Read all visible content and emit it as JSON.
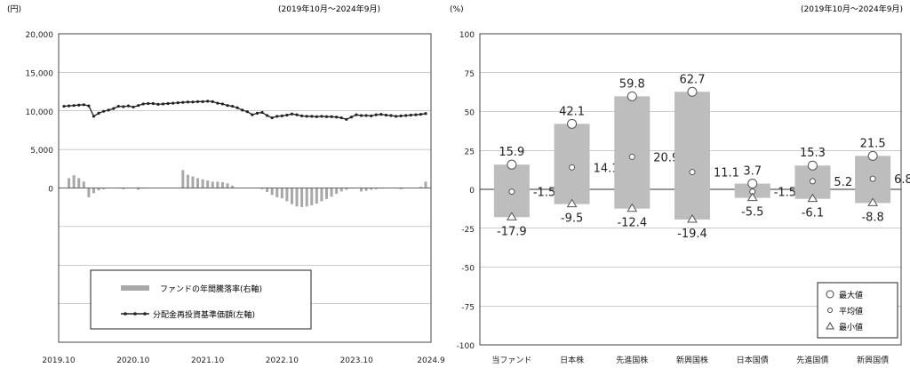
{
  "left_chart": {
    "unit_label": "(円)",
    "period": "(2019年10月～2024年9月)",
    "legend": {
      "bar_label": "ファンドの年間騰落率(右軸)",
      "line_label": "分配金再投資基準価額(左軸)"
    },
    "colors": {
      "bar": "#a8a8a8",
      "line": "#222222",
      "axis": "#444444",
      "grid": "#9a9a9a"
    }
  },
  "right_chart": {
    "unit_label": "(%)",
    "period": "(2019年10月～2024年9月)",
    "legend": {
      "max_label": "最大値",
      "avg_label": "平均値",
      "min_label": "最小値"
    },
    "colors": {
      "bar": "#bdbdbd",
      "marker": "#ffffff",
      "axis": "#444444",
      "grid": "#9a9a9a"
    }
  },
  "chart_data": [
    {
      "type": "line",
      "title": "",
      "xlabel": "",
      "ylabel": "(円)",
      "ylim": [
        0,
        20000
      ],
      "yticks": [
        "20,000",
        "15,000",
        "10,000",
        "5,000",
        "0"
      ],
      "xticks": [
        "2019.10",
        "2020.10",
        "2021.10",
        "2022.10",
        "2023.10",
        "2024.9"
      ],
      "grid": true,
      "legend_position": "bottom-center",
      "series": [
        {
          "name": "分配金再投資基準価額(左軸)",
          "axis": "left",
          "kind": "line",
          "values": [
            10600,
            10650,
            10700,
            10750,
            10800,
            10650,
            9300,
            9700,
            9950,
            10100,
            10300,
            10600,
            10550,
            10650,
            10500,
            10700,
            10900,
            10950,
            10950,
            10850,
            10900,
            10950,
            11000,
            11050,
            11100,
            11150,
            11150,
            11200,
            11200,
            11250,
            11200,
            11000,
            10900,
            10700,
            10600,
            10400,
            10100,
            9900,
            9500,
            9700,
            9800,
            9400,
            9100,
            9300,
            9350,
            9450,
            9600,
            9500,
            9350,
            9300,
            9300,
            9250,
            9300,
            9250,
            9250,
            9200,
            9100,
            8900,
            9200,
            9500,
            9400,
            9400,
            9350,
            9500,
            9550,
            9450,
            9400,
            9300,
            9350,
            9400,
            9450,
            9500,
            9550,
            9650
          ]
        },
        {
          "name": "ファンドの年間騰落率(右軸)",
          "axis": "right",
          "kind": "bar",
          "values": [
            0,
            8.5,
            11,
            8.5,
            5.5,
            -8,
            -4.5,
            -2,
            -1,
            0,
            0,
            -0.5,
            -1,
            0,
            0,
            -1.5,
            -0.5,
            0,
            0,
            0,
            0,
            0,
            0,
            0,
            15.5,
            11.5,
            10,
            8.5,
            7.5,
            6.5,
            5.5,
            5.5,
            5,
            4,
            2,
            0,
            0,
            0,
            0,
            0,
            -1,
            -3.5,
            -6,
            -8,
            -9,
            -11.5,
            -14,
            -16,
            -16.5,
            -16,
            -15,
            -13.5,
            -11.5,
            -9.5,
            -7.5,
            -5,
            -3,
            -1.5,
            -0.5,
            0,
            -3,
            -2.5,
            -1.5,
            -1,
            -0.5,
            0,
            0,
            -0.5,
            -1,
            0,
            0,
            0,
            1,
            5.5
          ]
        }
      ]
    },
    {
      "type": "bar",
      "title": "",
      "xlabel": "",
      "ylabel": "(%)",
      "ylim": [
        -100,
        100
      ],
      "yticks": [
        100,
        75,
        50,
        25,
        0,
        -25,
        -50,
        -75,
        -100
      ],
      "grid": true,
      "legend_position": "bottom-right",
      "categories": [
        "当ファンド",
        "日本株",
        "先進国株",
        "新興国株",
        "日本国債",
        "先進国債",
        "新興国債"
      ],
      "series": [
        {
          "name": "最大値",
          "values": [
            15.9,
            42.1,
            59.8,
            62.7,
            3.7,
            15.3,
            21.5
          ]
        },
        {
          "name": "平均値",
          "values": [
            -1.5,
            14.1,
            20.9,
            11.1,
            -1.5,
            5.2,
            6.8
          ]
        },
        {
          "name": "最小値",
          "values": [
            -17.9,
            -9.5,
            -12.4,
            -19.4,
            -5.5,
            -6.1,
            -8.8
          ]
        }
      ],
      "labels": {
        "max": [
          "15.9",
          "42.1",
          "59.8",
          "62.7",
          "3.7",
          "15.3",
          "21.5"
        ],
        "avg": [
          "-1.5",
          "14.1",
          "20.9",
          "11.1",
          "-1.5",
          "5.2",
          "6.8"
        ],
        "min": [
          "-17.9",
          "-9.5",
          "-12.4",
          "-19.4",
          "-5.5",
          "-6.1",
          "-8.8"
        ]
      }
    }
  ]
}
